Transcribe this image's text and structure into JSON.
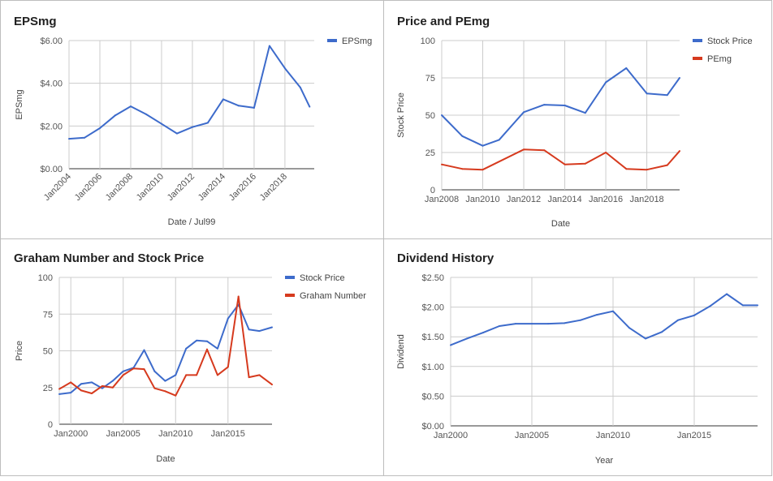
{
  "colors": {
    "blue": "#3d6bcb",
    "red": "#d63a1e"
  },
  "chart_data": [
    {
      "type": "line",
      "title": "EPSmg",
      "xlabel": "Date / Jul99",
      "ylabel": "EPSmg",
      "ylim": [
        0,
        6
      ],
      "xlim": [
        2004,
        2019.9
      ],
      "yticks": [
        0,
        2,
        4,
        6
      ],
      "yticklabels": [
        "$0.00",
        "$2.00",
        "$4.00",
        "$6.00"
      ],
      "xticks": [
        2004,
        2006,
        2008,
        2010,
        2012,
        2014,
        2016,
        2018
      ],
      "xticklabels": [
        "Jan2004",
        "Jan2006",
        "Jan2008",
        "Jan2010",
        "Jan2012",
        "Jan2014",
        "Jan2016",
        "Jan2018"
      ],
      "xticks_rotated": true,
      "grid": true,
      "legend": "right",
      "series": [
        {
          "name": "EPSmg",
          "color": "#3d6bcb",
          "x": [
            2004,
            2005,
            2006,
            2007,
            2008,
            2009,
            2010,
            2011,
            2012,
            2013,
            2014,
            2015,
            2016,
            2017,
            2018,
            2019,
            2019.6
          ],
          "y": [
            1.4,
            1.45,
            1.9,
            2.5,
            2.92,
            2.55,
            2.1,
            1.65,
            1.95,
            2.15,
            3.25,
            2.95,
            2.85,
            5.75,
            4.7,
            3.8,
            2.9
          ]
        }
      ]
    },
    {
      "type": "line",
      "title": "Price and PEmg",
      "xlabel": "Date",
      "ylabel": "Stock Price",
      "ylim": [
        0,
        100
      ],
      "xlim": [
        2008,
        2019.6
      ],
      "yticks": [
        0,
        25,
        50,
        75,
        100
      ],
      "yticklabels": [
        "0",
        "25",
        "50",
        "75",
        "100"
      ],
      "xticks": [
        2008,
        2010,
        2012,
        2014,
        2016,
        2018
      ],
      "xticklabels": [
        "Jan2008",
        "Jan2010",
        "Jan2012",
        "Jan2014",
        "Jan2016",
        "Jan2018"
      ],
      "xticks_rotated": false,
      "grid": true,
      "legend": "right",
      "series": [
        {
          "name": "Stock Price",
          "color": "#3d6bcb",
          "x": [
            2008,
            2009,
            2010,
            2010.8,
            2012,
            2013,
            2014,
            2015,
            2016,
            2017,
            2018,
            2019,
            2019.6
          ],
          "y": [
            50,
            36,
            29.5,
            33.5,
            52,
            57,
            56.5,
            51.5,
            72,
            81.5,
            64.5,
            63.5,
            75
          ]
        },
        {
          "name": "PEmg",
          "color": "#d63a1e",
          "x": [
            2008,
            2009,
            2010,
            2012,
            2013,
            2014,
            2015,
            2016,
            2017,
            2018,
            2019,
            2019.6
          ],
          "y": [
            17,
            14,
            13.5,
            27,
            26.5,
            17,
            17.5,
            25,
            14,
            13.5,
            16.5,
            26
          ]
        }
      ]
    },
    {
      "type": "line",
      "title": "Graham Number and Stock Price",
      "xlabel": "Date",
      "ylabel": "Price",
      "ylim": [
        0,
        100
      ],
      "xlim": [
        1998.9,
        2019.2
      ],
      "yticks": [
        0,
        25,
        50,
        75,
        100
      ],
      "yticklabels": [
        "0",
        "25",
        "50",
        "75",
        "100"
      ],
      "xticks": [
        2000,
        2005,
        2010,
        2015
      ],
      "xticklabels": [
        "Jan2000",
        "Jan2005",
        "Jan2010",
        "Jan2015"
      ],
      "xticks_rotated": false,
      "grid": true,
      "legend": "right",
      "series": [
        {
          "name": "Stock Price",
          "color": "#3d6bcb",
          "x": [
            1998.9,
            2000,
            2001,
            2002,
            2003,
            2004,
            2005,
            2006,
            2007,
            2008,
            2009,
            2010,
            2011,
            2012,
            2013,
            2014,
            2015,
            2016,
            2017,
            2018,
            2019.2
          ],
          "y": [
            20.5,
            21.5,
            27.5,
            28.5,
            24.5,
            29.5,
            36,
            38.5,
            50.5,
            36,
            29.5,
            33.5,
            51.5,
            57,
            56.5,
            51.5,
            72,
            81.5,
            64.5,
            63.5,
            66
          ]
        },
        {
          "name": "Graham Number",
          "color": "#d63a1e",
          "x": [
            1998.9,
            2000,
            2001,
            2002,
            2003,
            2004,
            2005,
            2006,
            2007,
            2008,
            2009,
            2010,
            2011,
            2012,
            2013,
            2014,
            2015,
            2016,
            2017,
            2018,
            2019.2
          ],
          "y": [
            24,
            28.5,
            23,
            21,
            26,
            25,
            33.5,
            38,
            37.5,
            24.5,
            22.5,
            19.5,
            33.5,
            33.5,
            51,
            33.5,
            39,
            87,
            32,
            33.5,
            27
          ]
        }
      ]
    },
    {
      "type": "line",
      "title": "Dividend History",
      "xlabel": "Year",
      "ylabel": "Dividend",
      "ylim": [
        0,
        2.5
      ],
      "xlim": [
        2000,
        2018.9
      ],
      "yticks": [
        0,
        0.5,
        1.0,
        1.5,
        2.0,
        2.5
      ],
      "yticklabels": [
        "$0.00",
        "$0.50",
        "$1.00",
        "$1.50",
        "$2.00",
        "$2.50"
      ],
      "xticks": [
        2000,
        2005,
        2010,
        2015
      ],
      "xticklabels": [
        "Jan2000",
        "Jan2005",
        "Jan2010",
        "Jan2015"
      ],
      "xticks_rotated": false,
      "grid": true,
      "legend": "none",
      "series": [
        {
          "name": "",
          "color": "#3d6bcb",
          "x": [
            2000,
            2001,
            2002,
            2003,
            2004,
            2005,
            2006,
            2007,
            2008,
            2009,
            2010,
            2011,
            2012,
            2013,
            2014,
            2015,
            2016,
            2017,
            2018,
            2018.9
          ],
          "y": [
            1.36,
            1.47,
            1.57,
            1.68,
            1.72,
            1.72,
            1.72,
            1.73,
            1.78,
            1.87,
            1.93,
            1.65,
            1.47,
            1.58,
            1.78,
            1.86,
            2.02,
            2.22,
            2.03,
            2.03
          ]
        }
      ]
    }
  ]
}
